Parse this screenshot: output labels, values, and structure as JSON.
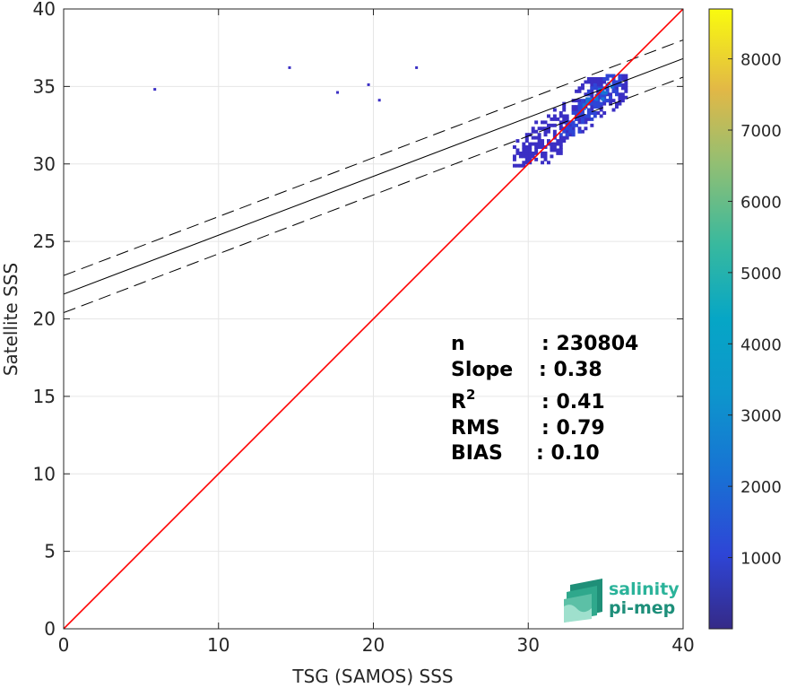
{
  "chart_data": {
    "type": "heatmap",
    "xlabel": "TSG (SAMOS) SSS",
    "ylabel": "Satellite SSS",
    "xlim": [
      0,
      40
    ],
    "ylim": [
      0,
      40
    ],
    "xticks": [
      "0",
      "10",
      "20",
      "30",
      "40"
    ],
    "yticks": [
      "0",
      "5",
      "10",
      "15",
      "20",
      "25",
      "30",
      "35",
      "40"
    ],
    "grid": true,
    "colorbar": {
      "range": [
        0,
        8700
      ],
      "ticks": [
        "1000",
        "2000",
        "3000",
        "4000",
        "5000",
        "6000",
        "7000",
        "8000"
      ],
      "colormap": "parula"
    },
    "lines": {
      "identity": {
        "slope": 1,
        "intercept": 0,
        "color": "#ff0000"
      },
      "fit": {
        "slope": 0.38,
        "intercept": 21.6,
        "color": "#000000"
      },
      "fit_upper": {
        "slope": 0.38,
        "intercept": 22.8,
        "style": "dashed"
      },
      "fit_lower": {
        "slope": 0.38,
        "intercept": 20.4,
        "style": "dashed"
      }
    },
    "stats": [
      {
        "label": "n",
        "value": ": 230804"
      },
      {
        "label": "Slope",
        "value": ": 0.38"
      },
      {
        "label": "R",
        "sup": "2",
        "value": ": 0.41"
      },
      {
        "label": "RMS",
        "value": ": 0.79"
      },
      {
        "label": "BIAS",
        "value": ": 0.10"
      }
    ],
    "density_clusters": [
      {
        "x": [
          29.0,
          36.3
        ],
        "y": [
          29.8,
          35.8
        ],
        "level": 300
      },
      {
        "x": [
          32.0,
          36.0
        ],
        "y": [
          31.8,
          35.7
        ],
        "level": 900
      },
      {
        "x": [
          33.5,
          35.5
        ],
        "y": [
          33.5,
          35.2
        ],
        "level": 2500
      }
    ],
    "outliers": [
      {
        "x": 5.8,
        "y": 34.7
      },
      {
        "x": 14.5,
        "y": 36.1
      },
      {
        "x": 17.6,
        "y": 34.5
      },
      {
        "x": 19.6,
        "y": 35.0
      },
      {
        "x": 20.3,
        "y": 34.0
      },
      {
        "x": 22.7,
        "y": 36.1
      }
    ]
  },
  "logo": {
    "line1": "salinity",
    "line2": "pi-mep"
  }
}
